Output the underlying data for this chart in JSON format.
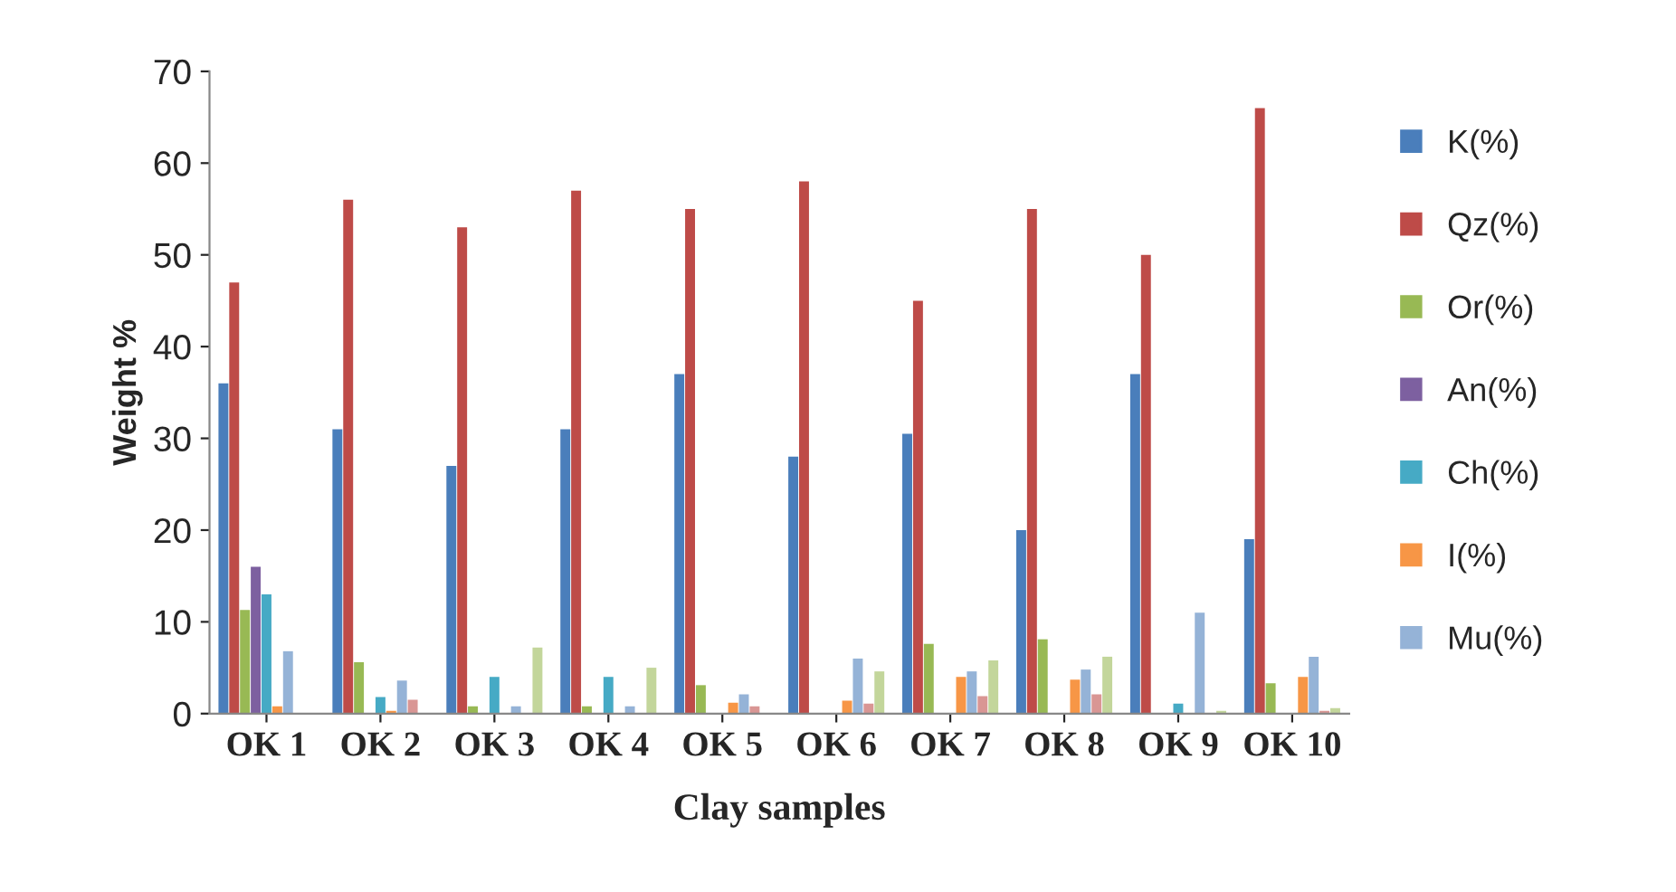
{
  "chart_data": {
    "type": "bar",
    "xlabel": "Clay samples",
    "ylabel": "Weight %",
    "categories": [
      "OK 1",
      "OK 2",
      "OK 3",
      "OK 4",
      "OK 5",
      "OK 6",
      "OK 7",
      "OK 8",
      "OK 9",
      "OK 10"
    ],
    "series": [
      {
        "name": "K(%)",
        "color": "#4a7ebb",
        "values": [
          36,
          31,
          27,
          31,
          37,
          28,
          30.5,
          20,
          37,
          19
        ]
      },
      {
        "name": "Qz(%)",
        "color": "#be4b48",
        "values": [
          47,
          56,
          53,
          57,
          55,
          58,
          45,
          55,
          50,
          66
        ]
      },
      {
        "name": "Or(%)",
        "color": "#98b954",
        "values": [
          11.3,
          5.6,
          0.8,
          0.8,
          3.1,
          null,
          7.6,
          8.1,
          null,
          3.3
        ]
      },
      {
        "name": "An(%)",
        "color": "#7d60a0",
        "values": [
          16,
          null,
          null,
          null,
          null,
          null,
          null,
          null,
          null,
          null
        ]
      },
      {
        "name": "Ch(%)",
        "color": "#46aac5",
        "values": [
          13,
          1.8,
          4,
          4,
          null,
          null,
          null,
          null,
          1.1,
          null
        ]
      },
      {
        "name": "I(%)",
        "color": "#f79646",
        "values": [
          0.8,
          0.3,
          null,
          null,
          1.2,
          1.4,
          4,
          3.7,
          null,
          4
        ]
      },
      {
        "name": "Mu(%)",
        "color": "#95b3d7",
        "values": [
          6.8,
          3.6,
          0.8,
          0.8,
          2.1,
          6,
          4.6,
          4.8,
          11,
          6.2
        ]
      },
      {
        "color": "#d99694",
        "values": [
          null,
          1.5,
          null,
          null,
          0.8,
          1.1,
          1.9,
          2.1,
          null,
          0.3
        ]
      },
      {
        "color": "#c3d69b",
        "values": [
          null,
          null,
          7.2,
          5,
          null,
          4.6,
          5.8,
          6.2,
          0.3,
          0.6
        ]
      }
    ],
    "ylim": [
      0,
      70
    ],
    "yticks": [
      0,
      10,
      20,
      30,
      40,
      50,
      60,
      70
    ],
    "grid": false,
    "legend": "right"
  }
}
